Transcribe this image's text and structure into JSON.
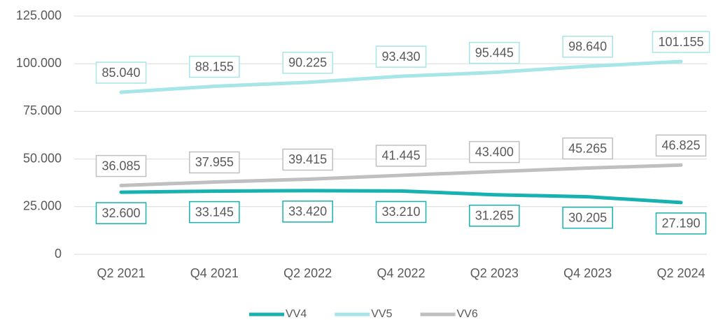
{
  "chart_data": {
    "type": "line",
    "categories": [
      "Q2 2021",
      "Q4 2021",
      "Q2 2022",
      "Q4 2022",
      "Q2 2023",
      "Q4 2023",
      "Q2 2024"
    ],
    "series": [
      {
        "name": "VV4",
        "color": "#17b1b1",
        "values": [
          32600,
          33145,
          33420,
          33210,
          31265,
          30205,
          27190
        ],
        "value_labels": [
          "32.600",
          "33.145",
          "33.420",
          "33.210",
          "31.265",
          "30.205",
          "27.190"
        ],
        "label_position": "below"
      },
      {
        "name": "VV5",
        "color": "#a6e5e8",
        "values": [
          85040,
          88155,
          90225,
          93430,
          95445,
          98640,
          101155
        ],
        "value_labels": [
          "85.040",
          "88.155",
          "90.225",
          "93.430",
          "95.445",
          "98.640",
          "101.155"
        ],
        "label_position": "above"
      },
      {
        "name": "VV6",
        "color": "#bfbfbf",
        "values": [
          36085,
          37955,
          39415,
          41445,
          43400,
          45265,
          46825
        ],
        "value_labels": [
          "36.085",
          "37.955",
          "39.415",
          "41.445",
          "43.400",
          "45.265",
          "46.825"
        ],
        "label_position": "above"
      }
    ],
    "ylim": [
      0,
      125000
    ],
    "yticks": [
      0,
      {
        "value": 25000,
        "label": "25.000"
      },
      {
        "value": 50000,
        "label": "50.000"
      },
      {
        "value": 75000,
        "label": "75.000"
      },
      {
        "value": 100000,
        "label": "100.000"
      },
      {
        "value": 125000,
        "label": "125.000"
      }
    ],
    "grid": true,
    "legend": "bottom"
  }
}
